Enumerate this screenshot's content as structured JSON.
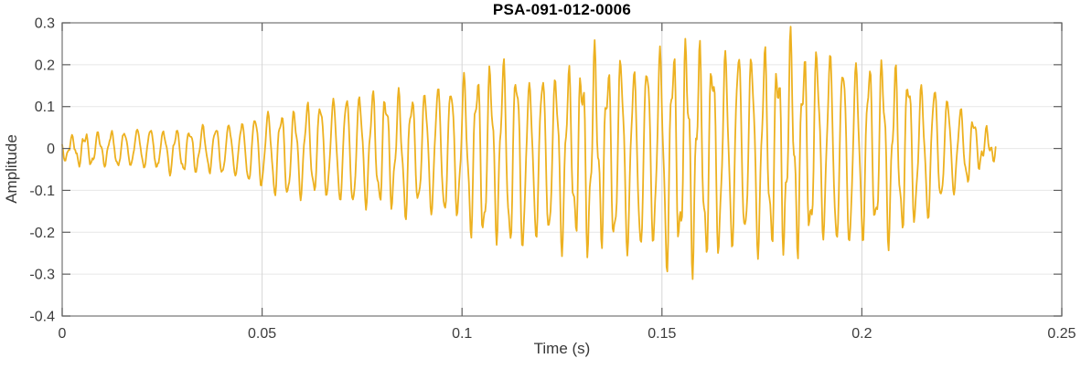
{
  "chart_data": {
    "type": "line",
    "title": "PSA-091-012-0006",
    "xlabel": "Time (s)",
    "ylabel": "Amplitude",
    "xlim": [
      0,
      0.25
    ],
    "ylim": [
      -0.4,
      0.3
    ],
    "xticks": [
      0,
      0.05,
      0.1,
      0.15,
      0.2,
      0.25
    ],
    "xtick_labels": [
      "0",
      "0.05",
      "0.1",
      "0.15",
      "0.2",
      "0.25"
    ],
    "yticks": [
      -0.4,
      -0.3,
      -0.2,
      -0.1,
      0,
      0.1,
      0.2,
      0.3
    ],
    "ytick_labels": [
      "-0.4",
      "-0.3",
      "-0.2",
      "-0.1",
      "0",
      "0.1",
      "0.2",
      "0.3"
    ],
    "grid": true,
    "legend": "none",
    "series": [
      {
        "name": "PSA-091-012-0006",
        "color": "#EDB120",
        "line_width": 1.8,
        "signal": {
          "duration_s": 0.2335,
          "carrier_hz": 306,
          "ripple_hz": 796,
          "envelope_dt_s": 0.005,
          "envelope_upper": [
            0.025,
            0.04,
            0.04,
            0.045,
            0.05,
            0.05,
            0.05,
            0.055,
            0.06,
            0.075,
            0.09,
            0.1,
            0.105,
            0.13,
            0.14,
            0.145,
            0.15,
            0.15,
            0.16,
            0.17,
            0.185,
            0.19,
            0.23,
            0.2,
            0.21,
            0.2,
            0.22,
            0.25,
            0.24,
            0.26,
            0.26,
            0.27,
            0.28,
            0.29,
            0.3,
            0.27,
            0.28,
            0.26,
            0.28,
            0.27,
            0.25,
            0.22,
            0.2,
            0.18,
            0.16,
            0.12,
            0.06,
            0.03
          ],
          "envelope_lower": [
            -0.03,
            -0.045,
            -0.045,
            -0.05,
            -0.055,
            -0.06,
            -0.06,
            -0.065,
            -0.07,
            -0.09,
            -0.11,
            -0.12,
            -0.13,
            -0.14,
            -0.15,
            -0.16,
            -0.17,
            -0.17,
            -0.18,
            -0.19,
            -0.21,
            -0.24,
            -0.25,
            -0.26,
            -0.28,
            -0.26,
            -0.26,
            -0.27,
            -0.28,
            -0.29,
            -0.3,
            -0.32,
            -0.3,
            -0.29,
            -0.28,
            -0.29,
            -0.3,
            -0.28,
            -0.26,
            -0.27,
            -0.26,
            -0.24,
            -0.22,
            -0.2,
            -0.16,
            -0.12,
            -0.05,
            -0.02
          ],
          "ripple_amp": [
            0.01,
            0.012,
            0.012,
            0.01,
            0.01,
            0.01,
            0.01,
            0.012,
            0.012,
            0.015,
            0.015,
            0.018,
            0.02,
            0.03,
            0.03,
            0.03,
            0.035,
            0.035,
            0.04,
            0.045,
            0.05,
            0.05,
            0.05,
            0.055,
            0.06,
            0.065,
            0.07,
            0.07,
            0.07,
            0.075,
            0.075,
            0.08,
            0.08,
            0.08,
            0.08,
            0.08,
            0.08,
            0.075,
            0.07,
            0.065,
            0.06,
            0.055,
            0.05,
            0.045,
            0.04,
            0.03,
            0.02,
            0.01
          ]
        }
      }
    ],
    "style": {
      "frame_color": "#7E7E7E",
      "tick_color": "#5F5F5F",
      "grid_x_color": "#D6D6D6",
      "grid_y_color": "#E7E7E7",
      "tick_label_color": "#3C3C3C",
      "axis_label_color": "#383838",
      "title_color": "#000000",
      "background": "#FFFFFF"
    }
  }
}
